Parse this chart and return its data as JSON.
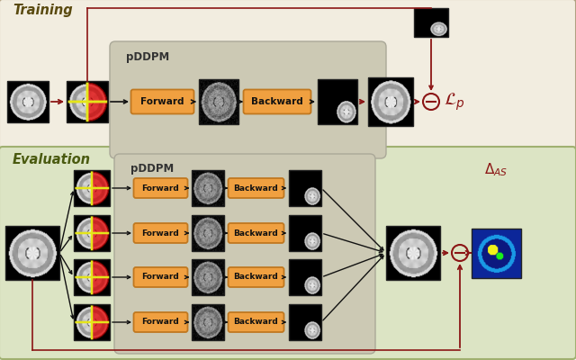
{
  "training_bg": "#f2ede0",
  "eval_bg": "#dce4c4",
  "train_border": "#b0a080",
  "eval_border": "#a0b070",
  "pddpm_box_bg": "#ccc9b4",
  "pddpm_box_border": "#aaa898",
  "button_orange": "#f0a040",
  "button_border": "#c07820",
  "arrow_red": "#8B1515",
  "arrow_black": "#111111",
  "title_training": "Training",
  "title_eval": "Evaluation",
  "pddpm_label": "pDDPM",
  "forward_label": "Forward",
  "backward_label": "Backward",
  "loss_label": "$\\mathcal{L}_p$",
  "delta_label": "$\\Delta_{AS}$",
  "minus_circle_color": "#8B1515",
  "label_color_train": "#5a4a10",
  "label_color_eval": "#4a5a10"
}
